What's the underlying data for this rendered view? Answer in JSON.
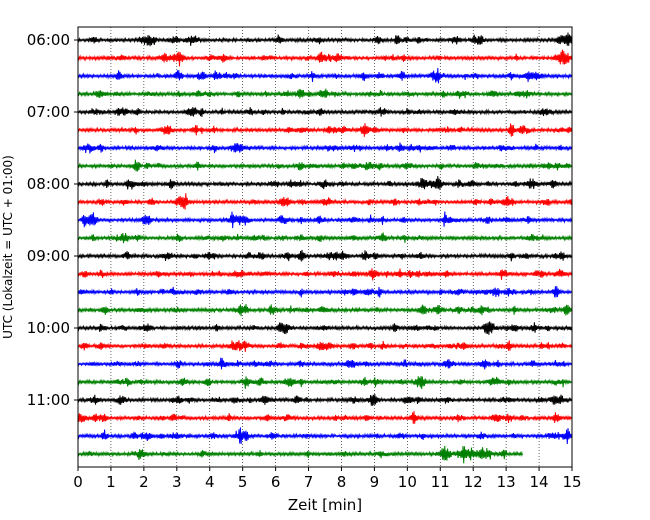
{
  "chart_data": {
    "type": "line",
    "title": "",
    "xlabel": "Zeit  [min]",
    "ylabel": "UTC (Lokalzeit = UTC + 01:00)",
    "xlim": [
      0,
      15
    ],
    "x_ticks": [
      0,
      1,
      2,
      3,
      4,
      5,
      6,
      7,
      8,
      9,
      10,
      11,
      12,
      13,
      14,
      15
    ],
    "x_grid": "dotted vertical lines at each minute",
    "y_ticks": [
      "06:00",
      "07:00",
      "08:00",
      "09:00",
      "10:00",
      "11:00"
    ],
    "y_range": [
      "06:00",
      "11:45"
    ],
    "trace_interval_minutes": 15,
    "colors": [
      "#000000",
      "#ff0000",
      "#0000ff",
      "#008000"
    ],
    "series": [
      {
        "start": "06:00",
        "color": "#000000",
        "x_end": 15
      },
      {
        "start": "06:15",
        "color": "#ff0000",
        "x_end": 15
      },
      {
        "start": "06:30",
        "color": "#0000ff",
        "x_end": 15
      },
      {
        "start": "06:45",
        "color": "#008000",
        "x_end": 15
      },
      {
        "start": "07:00",
        "color": "#000000",
        "x_end": 15
      },
      {
        "start": "07:15",
        "color": "#ff0000",
        "x_end": 15
      },
      {
        "start": "07:30",
        "color": "#0000ff",
        "x_end": 15
      },
      {
        "start": "07:45",
        "color": "#008000",
        "x_end": 15
      },
      {
        "start": "08:00",
        "color": "#000000",
        "x_end": 15
      },
      {
        "start": "08:15",
        "color": "#ff0000",
        "x_end": 15
      },
      {
        "start": "08:30",
        "color": "#0000ff",
        "x_end": 15
      },
      {
        "start": "08:45",
        "color": "#008000",
        "x_end": 15
      },
      {
        "start": "09:00",
        "color": "#000000",
        "x_end": 15
      },
      {
        "start": "09:15",
        "color": "#ff0000",
        "x_end": 15
      },
      {
        "start": "09:30",
        "color": "#0000ff",
        "x_end": 15
      },
      {
        "start": "09:45",
        "color": "#008000",
        "x_end": 15
      },
      {
        "start": "10:00",
        "color": "#000000",
        "x_end": 15
      },
      {
        "start": "10:15",
        "color": "#ff0000",
        "x_end": 15
      },
      {
        "start": "10:30",
        "color": "#0000ff",
        "x_end": 15
      },
      {
        "start": "10:45",
        "color": "#008000",
        "x_end": 15
      },
      {
        "start": "11:00",
        "color": "#000000",
        "x_end": 15
      },
      {
        "start": "11:15",
        "color": "#ff0000",
        "x_end": 15
      },
      {
        "start": "11:30",
        "color": "#0000ff",
        "x_end": 15
      },
      {
        "start": "11:45",
        "color": "#008000",
        "x_end": 13.5
      }
    ]
  }
}
